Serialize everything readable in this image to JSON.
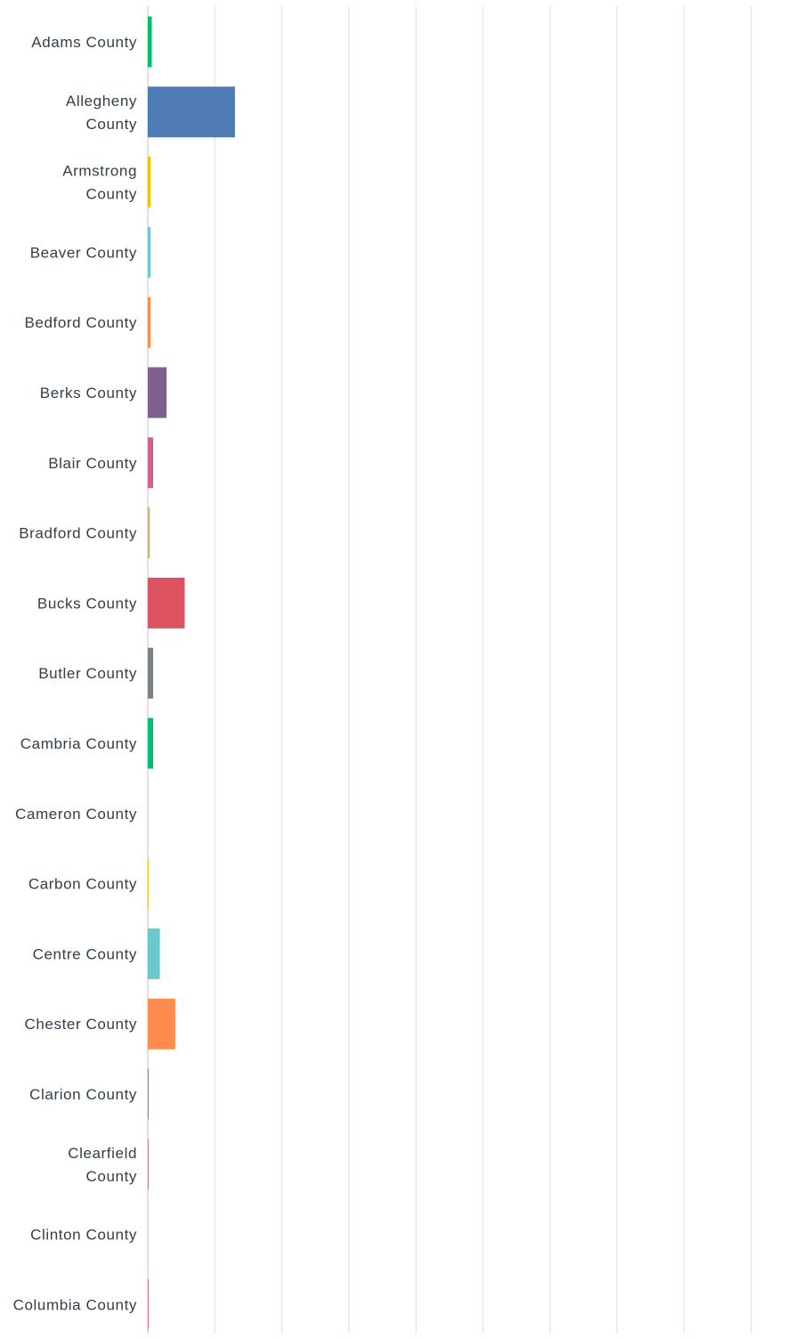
{
  "chart_data": {
    "type": "bar",
    "orientation": "horizontal",
    "title": "",
    "xlabel": "",
    "ylabel": "",
    "categories": [
      [
        "Adams County"
      ],
      [
        "Allegheny",
        "County"
      ],
      [
        "Armstrong",
        "County"
      ],
      [
        "Beaver County"
      ],
      [
        "Bedford County"
      ],
      [
        "Berks County"
      ],
      [
        "Blair County"
      ],
      [
        "Bradford County"
      ],
      [
        "Bucks County"
      ],
      [
        "Butler County"
      ],
      [
        "Cambria County"
      ],
      [
        "Cameron County"
      ],
      [
        "Carbon County"
      ],
      [
        "Centre County"
      ],
      [
        "Chester County"
      ],
      [
        "Clarion County"
      ],
      [
        "Clearfield",
        "County"
      ],
      [
        "Clinton County"
      ],
      [
        "Columbia County"
      ]
    ],
    "values": [
      0.6,
      13.0,
      0.4,
      0.4,
      0.4,
      2.8,
      0.8,
      0.3,
      5.5,
      0.8,
      0.8,
      0.0,
      0.1,
      1.8,
      4.1,
      0.1,
      0.1,
      0.0,
      0.1
    ],
    "colors": [
      "#00bf6f",
      "#507cb6",
      "#f9be00",
      "#6bc8cd",
      "#ff8b4f",
      "#7f5f90",
      "#d25f90",
      "#c7b879",
      "#dc5261",
      "#768086",
      "#00bf6f",
      "#507cb6",
      "#f9be00",
      "#6bc8cd",
      "#ff8b4f",
      "#7f5f90",
      "#d25f90",
      "#c7b879",
      "#dc5261"
    ],
    "xlim": [
      0,
      100
    ],
    "gridlines": 10,
    "grid": true,
    "axis_labels_shown": false,
    "legend": "none"
  }
}
